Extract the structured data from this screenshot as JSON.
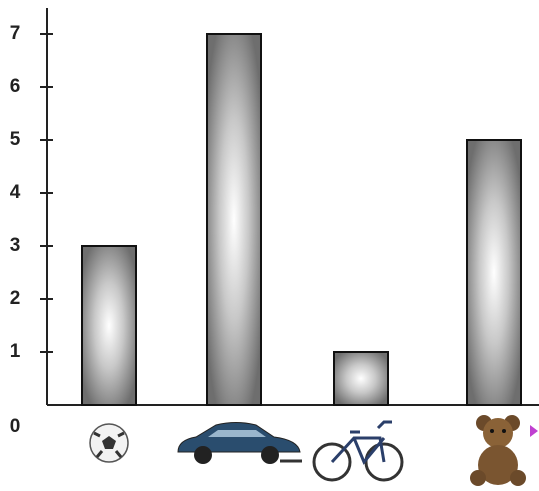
{
  "chart_data": {
    "type": "bar",
    "categories": [
      null,
      null,
      null,
      null
    ],
    "values": [
      3,
      7,
      1,
      5
    ],
    "ylim": [
      0,
      7.5
    ],
    "yticks": [
      0,
      1,
      2,
      3,
      4,
      5,
      6,
      7
    ]
  }
}
